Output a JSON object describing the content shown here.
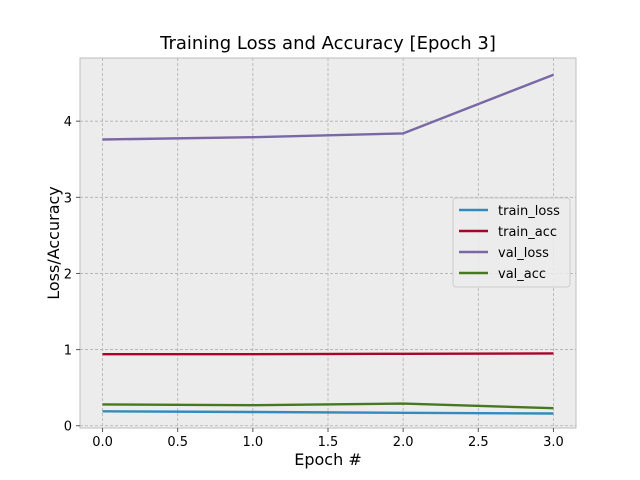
{
  "chart_data": {
    "type": "line",
    "title": "Training Loss and Accuracy [Epoch 3]",
    "xlabel": "Epoch #",
    "ylabel": "Loss/Accuracy",
    "x": [
      0,
      1,
      2,
      3
    ],
    "xlim": [
      -0.15,
      3.15
    ],
    "ylim": [
      -0.03,
      4.83
    ],
    "xticks": [
      0,
      0.5,
      1,
      1.5,
      2,
      2.5,
      3
    ],
    "xtick_labels": [
      "0.0",
      "0.5",
      "1.0",
      "1.5",
      "2.0",
      "2.5",
      "3.0"
    ],
    "yticks": [
      0,
      1,
      2,
      3,
      4
    ],
    "ytick_labels": [
      "0",
      "1",
      "2",
      "3",
      "4"
    ],
    "grid": true,
    "legend_position": "center-right",
    "series": [
      {
        "name": "train_loss",
        "color": "#348abd",
        "values": [
          0.19,
          0.18,
          0.17,
          0.16
        ]
      },
      {
        "name": "train_acc",
        "color": "#a60628",
        "values": [
          0.94,
          0.94,
          0.945,
          0.95
        ]
      },
      {
        "name": "val_loss",
        "color": "#7a68a6",
        "values": [
          3.76,
          3.79,
          3.84,
          4.61
        ]
      },
      {
        "name": "val_acc",
        "color": "#467821",
        "values": [
          0.28,
          0.27,
          0.29,
          0.23
        ]
      }
    ]
  }
}
